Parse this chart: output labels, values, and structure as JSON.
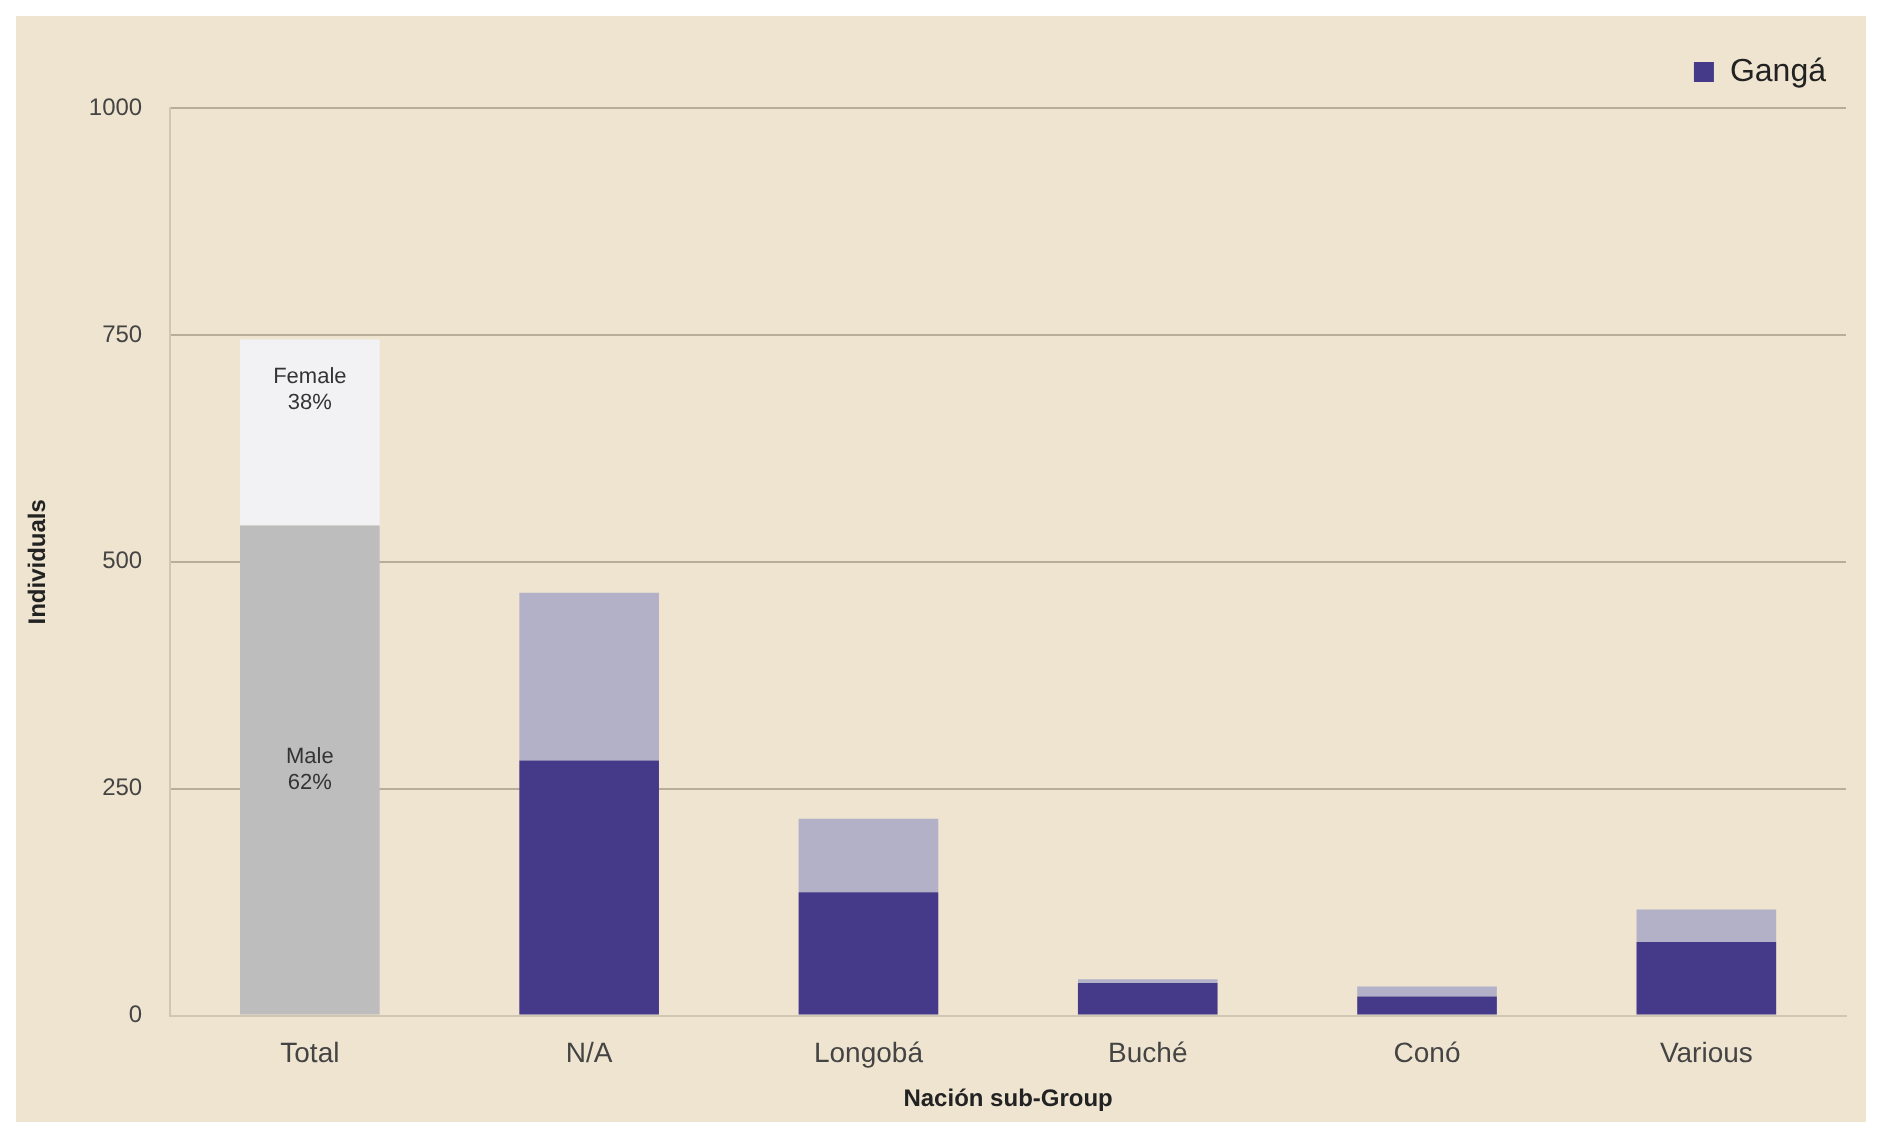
{
  "chart_data": {
    "type": "bar",
    "stacked": true,
    "xlabel": "Nación sub-Group",
    "ylabel": "Individuals",
    "categories": [
      "Total",
      "N/A",
      "Longobá",
      "Buché",
      "Conó",
      "Various"
    ],
    "series": [
      {
        "color": "#bdbdbd",
        "values": [
          540,
          null,
          null,
          null,
          null,
          null
        ]
      },
      {
        "color": "#f2f2f4",
        "values": [
          205,
          null,
          null,
          null,
          null,
          null
        ]
      },
      {
        "name": "Gangá",
        "color": "#45398a",
        "values": [
          null,
          281,
          136,
          36,
          21,
          81
        ]
      },
      {
        "color": "#b3b1c8",
        "values": [
          null,
          185,
          81,
          4,
          11,
          36
        ]
      }
    ],
    "ylim": [
      0,
      1000
    ],
    "yticks": [
      0,
      250,
      500,
      750,
      1000
    ],
    "grid": "y",
    "legend": "top right",
    "annotations": [
      "Female\n38%",
      "Male\n62%"
    ]
  }
}
